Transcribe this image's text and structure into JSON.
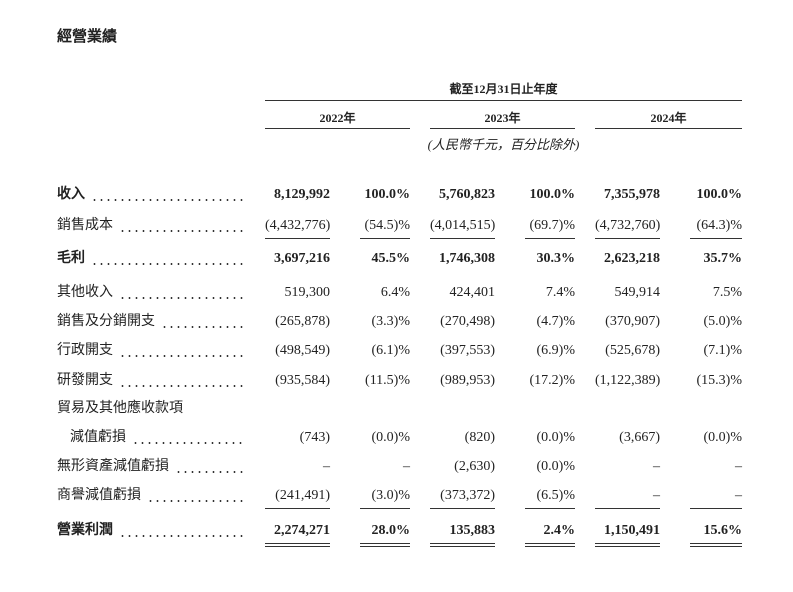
{
  "header": {
    "title": "經營業績"
  },
  "table": {
    "period_header": "截至12月31日止年度",
    "years": [
      "2022年",
      "2023年",
      "2024年"
    ],
    "unit_note": "(人民幣千元，百分比除外)",
    "rows": [
      {
        "label": "收入",
        "bold": true,
        "cells": [
          "8,129,992",
          "100.0%",
          "5,760,823",
          "100.0%",
          "7,355,978",
          "100.0%"
        ]
      },
      {
        "label": "銷售成本",
        "underline": "single",
        "cells": [
          "(4,432,776)",
          "(54.5)%",
          "(4,014,515)",
          "(69.7)%",
          "(4,732,760)",
          "(64.3)%"
        ]
      },
      {
        "label": "毛利",
        "bold": true,
        "cells": [
          "3,697,216",
          "45.5%",
          "1,746,308",
          "30.3%",
          "2,623,218",
          "35.7%"
        ]
      },
      {
        "label": "其他收入",
        "cells": [
          "519,300",
          "6.4%",
          "424,401",
          "7.4%",
          "549,914",
          "7.5%"
        ]
      },
      {
        "label": "銷售及分銷開支",
        "cells": [
          "(265,878)",
          "(3.3)%",
          "(270,498)",
          "(4.7)%",
          "(370,907)",
          "(5.0)%"
        ]
      },
      {
        "label": "行政開支",
        "cells": [
          "(498,549)",
          "(6.1)%",
          "(397,553)",
          "(6.9)%",
          "(525,678)",
          "(7.1)%"
        ]
      },
      {
        "label": "研發開支",
        "cells": [
          "(935,584)",
          "(11.5)%",
          "(989,953)",
          "(17.2)%",
          "(1,122,389)",
          "(15.3)%"
        ]
      },
      {
        "label": "貿易及其他應收款項",
        "cells": []
      },
      {
        "label": "減值虧損",
        "indent": true,
        "cells": [
          "(743)",
          "(0.0)%",
          "(820)",
          "(0.0)%",
          "(3,667)",
          "(0.0)%"
        ]
      },
      {
        "label": "無形資產減值虧損",
        "cells": [
          "–",
          "–",
          "(2,630)",
          "(0.0)%",
          "–",
          "–"
        ]
      },
      {
        "label": "商譽減值虧損",
        "underline": "single",
        "cells": [
          "(241,491)",
          "(3.0)%",
          "(373,372)",
          "(6.5)%",
          "–",
          "–"
        ]
      },
      {
        "label": "營業利潤",
        "bold": true,
        "underline": "double",
        "cells": [
          "2,274,271",
          "28.0%",
          "135,883",
          "2.4%",
          "1,150,491",
          "15.6%"
        ]
      }
    ]
  }
}
